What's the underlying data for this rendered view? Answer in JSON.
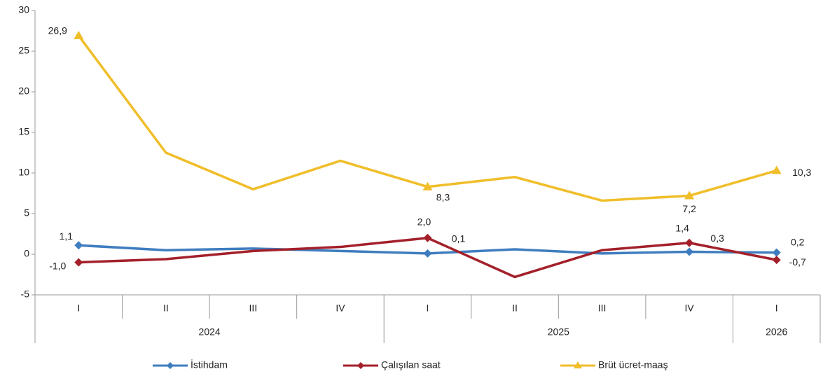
{
  "chart_data": {
    "type": "line",
    "categories": [
      "I",
      "II",
      "III",
      "IV",
      "I",
      "II",
      "III",
      "IV",
      "I"
    ],
    "groups": [
      {
        "name": "2024",
        "size": 4
      },
      {
        "name": "2025",
        "size": 4
      },
      {
        "name": "2026",
        "size": 1
      }
    ],
    "series": [
      {
        "name": "İstihdam",
        "color": "#3f7dbf",
        "marker": "diamond",
        "values": [
          1.1,
          0.5,
          0.7,
          0.4,
          0.1,
          0.6,
          0.1,
          0.3,
          0.2
        ],
        "value_labels": [
          "1,1",
          null,
          null,
          null,
          "0,1",
          null,
          null,
          "0,3",
          "0,2"
        ]
      },
      {
        "name": "Çalışılan saat",
        "color": "#a3202a",
        "marker": "diamond",
        "values": [
          -1.0,
          -0.6,
          0.4,
          0.9,
          2.0,
          -2.8,
          0.5,
          1.4,
          -0.7
        ],
        "value_labels": [
          "-1,0",
          null,
          null,
          null,
          "2,0",
          null,
          null,
          "1,4",
          "-0,7"
        ]
      },
      {
        "name": "Brüt ücret-maaş",
        "color": "#f0be2a",
        "marker": "triangle",
        "values": [
          26.9,
          12.5,
          8.0,
          11.5,
          8.3,
          9.5,
          6.6,
          7.2,
          10.3
        ],
        "value_labels": [
          "26,9",
          null,
          null,
          null,
          "8,3",
          null,
          null,
          "7,2",
          "10,3"
        ]
      }
    ],
    "ylim": [
      -5,
      30
    ],
    "yticks": [
      -5,
      0,
      5,
      10,
      15,
      20,
      25,
      30
    ],
    "legend": "bottom"
  }
}
